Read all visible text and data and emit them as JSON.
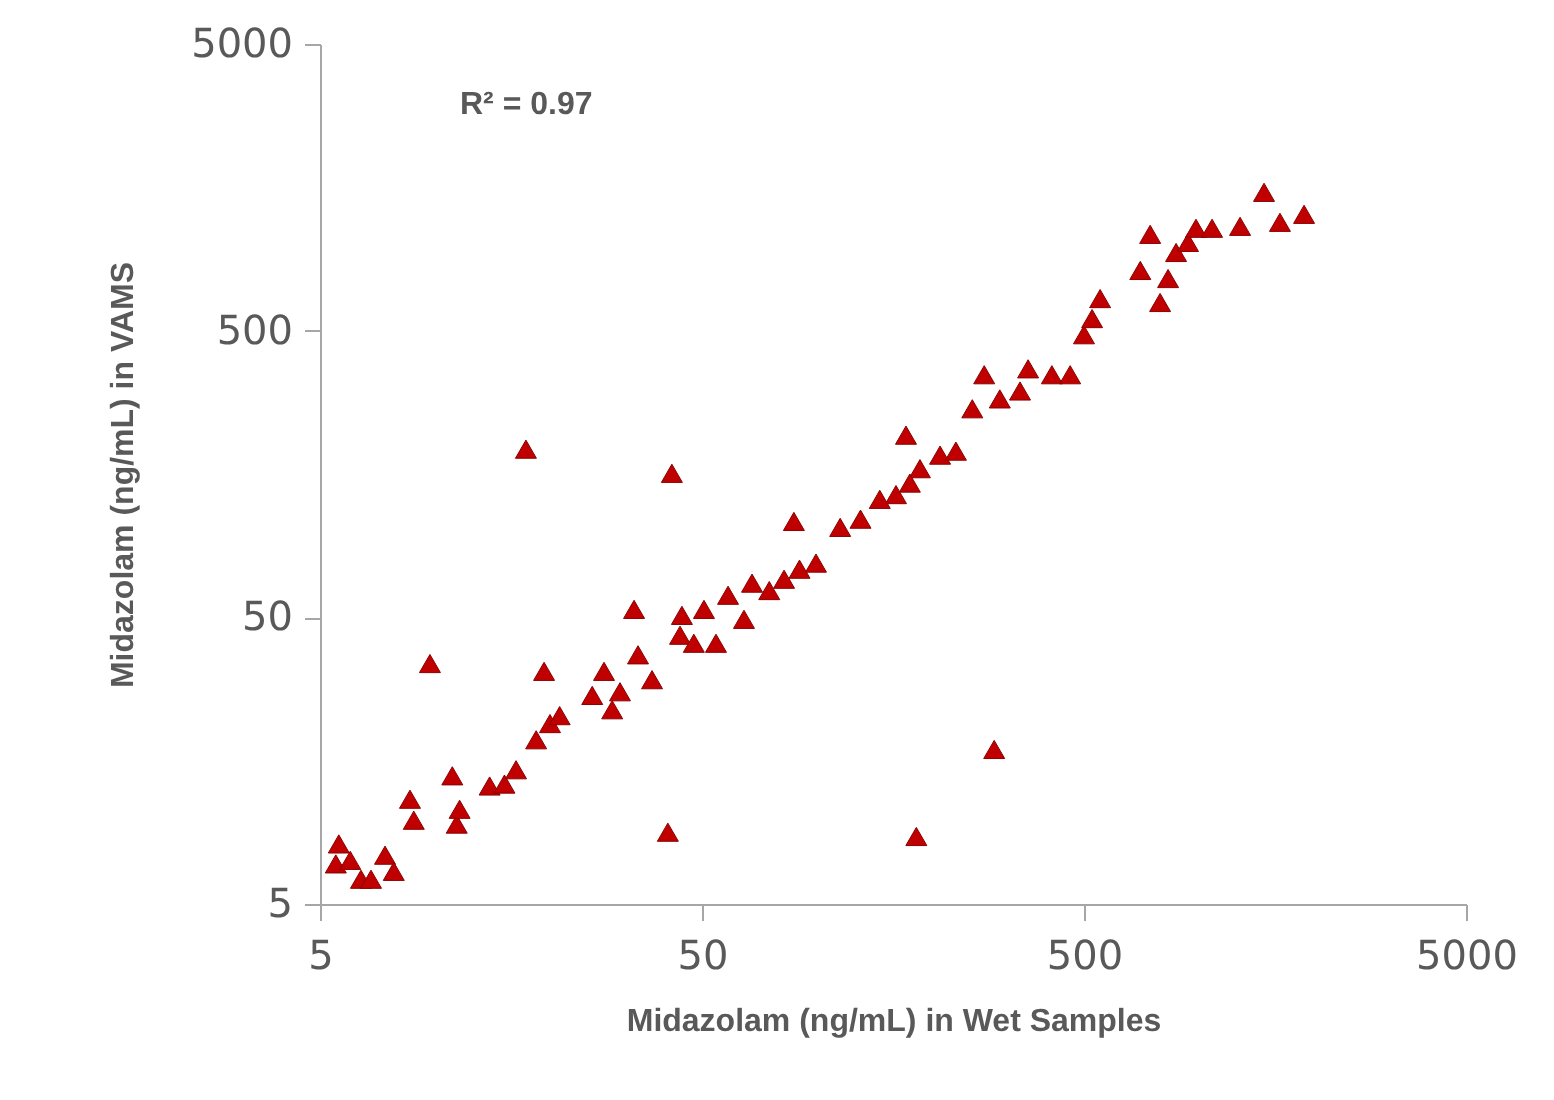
{
  "chart_data": {
    "type": "scatter",
    "xlabel": "Midazolam (ng/mL) in Wet Samples",
    "ylabel": "Midazolam (ng/mL) in VAMS",
    "annotations": [
      "R² = 0.97"
    ],
    "log": "xy",
    "xlim": [
      5,
      5000
    ],
    "ylim": [
      5,
      5000
    ],
    "xticks": [
      5,
      50,
      500,
      5000
    ],
    "yticks": [
      5,
      50,
      500,
      5000
    ],
    "grid": false,
    "marker": "triangle",
    "series": [
      {
        "color": "#c00000",
        "x": [
          5.6,
          5.5,
          6.0,
          6.4,
          6.8,
          7.4,
          7.8,
          8.6,
          8.8,
          11.1,
          11.4,
          11.6,
          13.9,
          15.2,
          16.3,
          17.3,
          9.7,
          19.3,
          18.4,
          20,
          21.2,
          25.8,
          27.7,
          29.1,
          30.5,
          33.2,
          37,
          40.7,
          41.7,
          43.8,
          44.3,
          47.6,
          50.6,
          54.4,
          58.5,
          64.4,
          67.6,
          82,
          87,
          90,
          99.4,
          115,
          130,
          146,
          161,
          171,
          182,
          186,
          210,
          231,
          255,
          274,
          291,
          301,
          340,
          357,
          412,
          460,
          500,
          525,
          551,
          702,
          745,
          791,
          871,
          936,
          982,
          1082,
          1281,
          1480,
          1629,
          1884,
          830,
          175,
          75,
          34
        ],
        "values": [
          8.1,
          6.9,
          7.1,
          6.1,
          6.1,
          7.4,
          6.5,
          11.6,
          9.8,
          14.0,
          9.5,
          10.7,
          12.9,
          13.1,
          14.7,
          193,
          34.5,
          32.4,
          18.7,
          21.3,
          22.7,
          26.7,
          32.4,
          23.8,
          27.5,
          53.3,
          30.3,
          8.9,
          159,
          43.3,
          50.8,
          40.6,
          53.3,
          40.6,
          59.7,
          49.2,
          65.8,
          67.9,
          108,
          73.6,
          77.3,
          103,
          110,
          129,
          134,
          216,
          8.6,
          165,
          184,
          190,
          267,
          351,
          17.3,
          289,
          308,
          368,
          351,
          351,
          484,
          551,
          647,
          811,
          1084,
          627,
          937,
          1016,
          1138,
          1138,
          1156,
          1519,
          1194,
          1273,
          760,
          147,
          62,
          37
        ]
      }
    ]
  }
}
